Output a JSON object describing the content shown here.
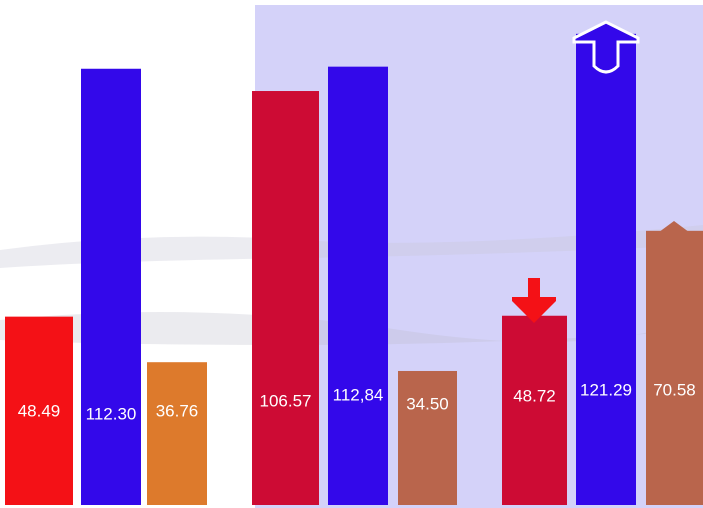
{
  "chart_data": {
    "type": "bar",
    "categories": [
      null,
      null,
      null,
      null,
      null,
      null,
      null,
      null,
      null
    ],
    "values": [
      48.49,
      112.3,
      36.76,
      106.57,
      112.84,
      34.5,
      48.72,
      121.29,
      70.58
    ],
    "value_labels": [
      "48.49",
      "112.30",
      "36.76",
      "106.57",
      "112,84",
      "34.50",
      "48.72",
      "121.29",
      "70.58"
    ],
    "colors": [
      "#f41116",
      "#3308ea",
      "#dd7a2c",
      "#cd0b34",
      "#3308ea",
      "#b9654c",
      "#cd0b34",
      "#3308ea",
      "#b9654c"
    ],
    "ylim": [
      0,
      130
    ]
  }
}
